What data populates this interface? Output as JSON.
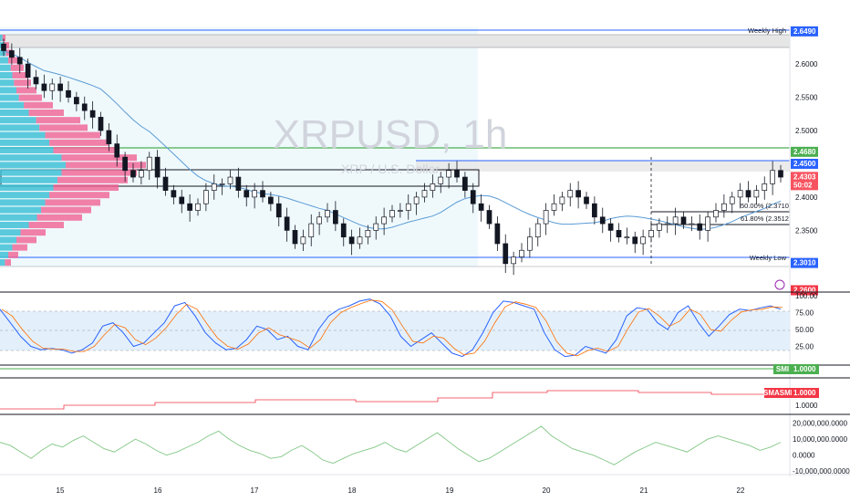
{
  "chart_data": [
    {
      "type": "candlestick",
      "title": "XRPUSD, 1h",
      "subtitle": "XRP / U.S. Dollar",
      "x_ticks": [
        "15",
        "16",
        "17",
        "18",
        "19",
        "20",
        "21",
        "22"
      ],
      "y_ticks": [
        "2.6000",
        "2.5500",
        "2.5000",
        "2.4000",
        "2.3500"
      ],
      "ylim": [
        2.26,
        2.655
      ],
      "price_tags": [
        {
          "label": "2.6490",
          "value": 2.649,
          "color": "#2962ff"
        },
        {
          "label": "2.4680",
          "value": 2.468,
          "color": "#4caf50"
        },
        {
          "label": "2.4500",
          "value": 2.45,
          "color": "#2962ff"
        },
        {
          "label": "2.4303",
          "sub": "50:02",
          "value": 2.4303,
          "color": "#f7525f"
        },
        {
          "label": "2.3010",
          "value": 2.301,
          "color": "#2962ff"
        },
        {
          "label": "2.2600",
          "value": 2.26,
          "color": "#f23645"
        }
      ],
      "annotations": {
        "weekly_high": "Weekly High",
        "weekly_low": "Weekly Low",
        "fib_50": "50.00% (2.3710)",
        "fib_618": "61.80% (2.3512)"
      },
      "close_series": [
        2.62,
        2.61,
        2.6,
        2.58,
        2.57,
        2.56,
        2.57,
        2.56,
        2.55,
        2.54,
        2.53,
        2.52,
        2.5,
        2.48,
        2.46,
        2.44,
        2.43,
        2.44,
        2.46,
        2.43,
        2.41,
        2.4,
        2.39,
        2.38,
        2.39,
        2.41,
        2.42,
        2.42,
        2.43,
        2.41,
        2.4,
        2.41,
        2.4,
        2.39,
        2.37,
        2.35,
        2.33,
        2.34,
        2.36,
        2.37,
        2.38,
        2.36,
        2.34,
        2.33,
        2.34,
        2.35,
        2.36,
        2.37,
        2.38,
        2.38,
        2.39,
        2.4,
        2.41,
        2.42,
        2.43,
        2.44,
        2.43,
        2.41,
        2.39,
        2.38,
        2.36,
        2.33,
        2.3,
        2.31,
        2.32,
        2.34,
        2.36,
        2.38,
        2.39,
        2.4,
        2.41,
        2.4,
        2.39,
        2.37,
        2.36,
        2.35,
        2.34,
        2.34,
        2.33,
        2.34,
        2.35,
        2.36,
        2.36,
        2.37,
        2.36,
        2.36,
        2.35,
        2.37,
        2.38,
        2.39,
        2.4,
        2.41,
        2.4,
        2.41,
        2.42,
        2.44,
        2.43
      ]
    },
    {
      "type": "line",
      "name_label": "",
      "y_ticks": [
        "100.00",
        "75.00",
        "50.00",
        "25.00"
      ],
      "ylim": [
        0,
        100
      ],
      "series": [
        {
          "values": [
            80,
            60,
            40,
            25,
            20,
            22,
            20,
            15,
            20,
            30,
            55,
            60,
            45,
            25,
            30,
            45,
            60,
            85,
            90,
            70,
            45,
            30,
            20,
            22,
            35,
            55,
            50,
            35,
            40,
            25,
            20,
            50,
            70,
            80,
            85,
            92,
            95,
            88,
            70,
            40,
            25,
            35,
            45,
            30,
            15,
            10,
            20,
            45,
            75,
            92,
            90,
            85,
            80,
            45,
            20,
            10,
            12,
            25,
            20,
            15,
            35,
            70,
            82,
            80,
            60,
            50,
            75,
            85,
            60,
            40,
            55,
            72,
            80,
            78,
            82,
            85,
            80
          ]
        }
      ]
    },
    {
      "type": "line",
      "y_ticks": [
        "1.0000"
      ],
      "series": [
        {
          "name": "SMI",
          "last": "1.0000"
        }
      ]
    },
    {
      "type": "line",
      "y_ticks": [
        "1.0000"
      ],
      "series": [
        {
          "name": "SMASMI",
          "last": "1.0000"
        }
      ]
    },
    {
      "type": "line",
      "y_ticks": [
        "20,000,000.0000",
        "10,000,000.0000",
        "0.0000",
        "-10,000,000.0000"
      ],
      "ylim": [
        -11000000,
        22000000
      ],
      "series": [
        {
          "values": [
            8,
            6,
            2,
            -2,
            3,
            7,
            5,
            9,
            12,
            8,
            4,
            2,
            6,
            10,
            7,
            3,
            0,
            2,
            5,
            8,
            12,
            15,
            10,
            6,
            3,
            1,
            -2,
            -1,
            3,
            6,
            2,
            -3,
            -5,
            -2,
            1,
            3,
            5,
            8,
            4,
            2,
            6,
            10,
            14,
            9,
            4,
            0,
            -4,
            -2,
            2,
            6,
            10,
            14,
            18,
            12,
            8,
            4,
            2,
            0,
            -3,
            -6,
            -2,
            2,
            5,
            8,
            6,
            4,
            2,
            6,
            10,
            12,
            10,
            8,
            6,
            3,
            5,
            8
          ]
        }
      ]
    }
  ]
}
